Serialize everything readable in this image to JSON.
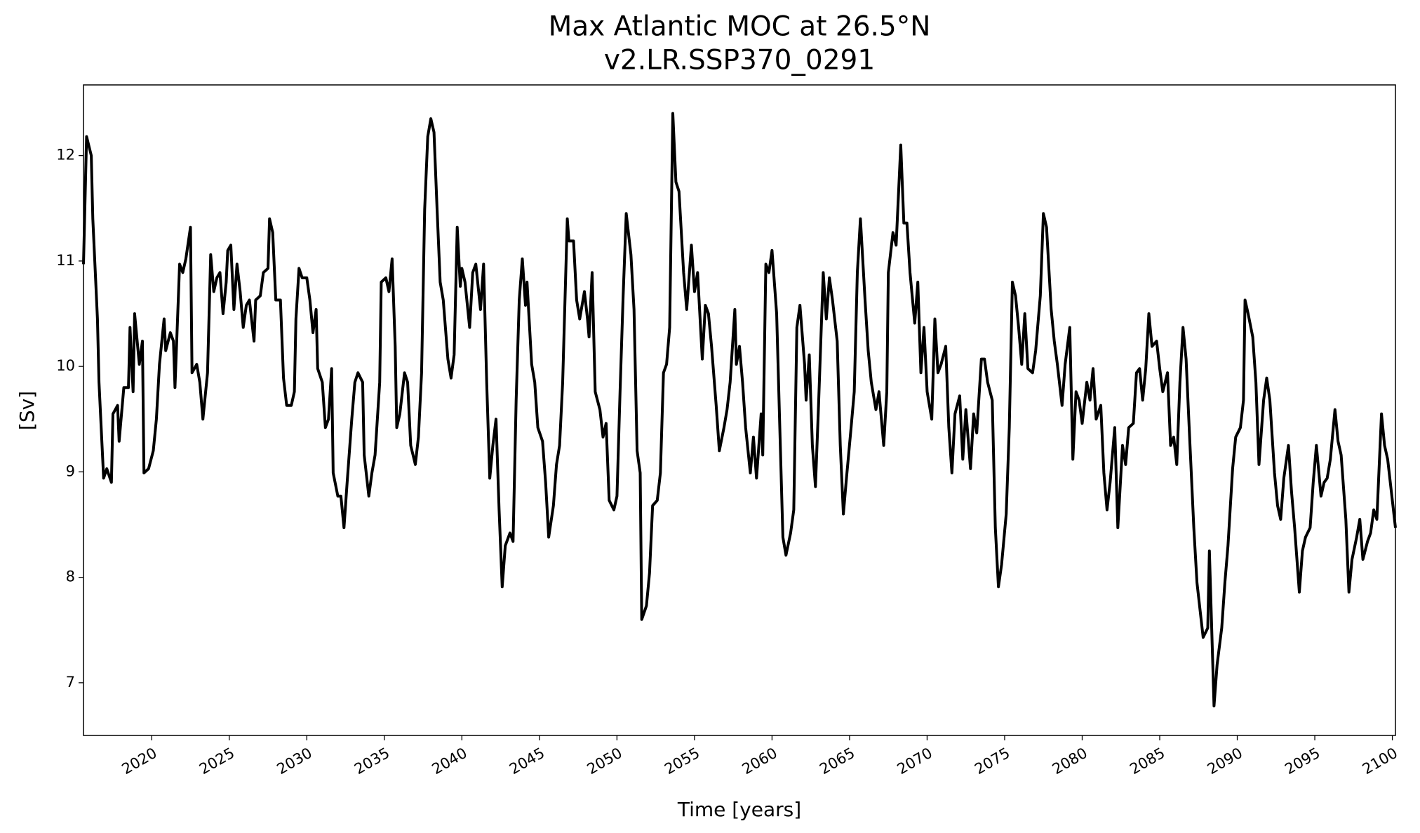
{
  "chart_data": {
    "type": "line",
    "title": "Max Atlantic MOC at 26.5°N",
    "subtitle": "v2.LR.SSP370_0291",
    "x_label": "Time [years]",
    "y_label": "[Sv]",
    "xlim": [
      2015.6,
      2100.2
    ],
    "ylim": [
      6.5,
      12.67
    ],
    "xticks": [
      2020,
      2025,
      2030,
      2035,
      2040,
      2045,
      2050,
      2055,
      2060,
      2065,
      2070,
      2075,
      2080,
      2085,
      2090,
      2095,
      2100
    ],
    "yticks": [
      7,
      8,
      9,
      10,
      11,
      12
    ],
    "series": [
      {
        "name": "MOC",
        "color": "#000000",
        "x": [
          2015.6,
          2015.8,
          2016.1,
          2016.2,
          2016.5,
          2016.6,
          2016.9,
          2017.1,
          2017.4,
          2017.5,
          2017.8,
          2017.9,
          2018.2,
          2018.5,
          2018.6,
          2018.8,
          2018.9,
          2019.2,
          2019.4,
          2019.5,
          2019.8,
          2020.1,
          2020.3,
          2020.5,
          2020.8,
          2020.9,
          2021.2,
          2021.4,
          2021.5,
          2021.8,
          2022.0,
          2022.2,
          2022.5,
          2022.6,
          2022.9,
          2023.1,
          2023.3,
          2023.6,
          2023.8,
          2024.0,
          2024.2,
          2024.4,
          2024.6,
          2024.8,
          2024.9,
          2025.1,
          2025.3,
          2025.5,
          2025.7,
          2025.9,
          2026.1,
          2026.3,
          2026.6,
          2026.7,
          2027.0,
          2027.2,
          2027.5,
          2027.6,
          2027.8,
          2028.0,
          2028.3,
          2028.5,
          2028.7,
          2029.0,
          2029.2,
          2029.3,
          2029.5,
          2029.7,
          2030.0,
          2030.2,
          2030.4,
          2030.6,
          2030.7,
          2031.0,
          2031.2,
          2031.4,
          2031.6,
          2031.7,
          2032.0,
          2032.2,
          2032.4,
          2032.6,
          2032.9,
          2033.1,
          2033.3,
          2033.6,
          2033.7,
          2034.0,
          2034.2,
          2034.4,
          2034.7,
          2034.8,
          2035.1,
          2035.3,
          2035.5,
          2035.7,
          2035.8,
          2036.0,
          2036.3,
          2036.5,
          2036.7,
          2037.0,
          2037.2,
          2037.4,
          2037.6,
          2037.8,
          2038.0,
          2038.2,
          2038.4,
          2038.6,
          2038.8,
          2039.1,
          2039.3,
          2039.5,
          2039.7,
          2039.9,
          2040.0,
          2040.2,
          2040.5,
          2040.7,
          2040.9,
          2041.2,
          2041.4,
          2041.6,
          2041.8,
          2042.0,
          2042.2,
          2042.4,
          2042.6,
          2042.8,
          2043.1,
          2043.3,
          2043.5,
          2043.7,
          2043.9,
          2044.1,
          2044.2,
          2044.5,
          2044.7,
          2044.9,
          2045.2,
          2045.4,
          2045.6,
          2045.9,
          2046.1,
          2046.3,
          2046.5,
          2046.8,
          2046.9,
          2047.2,
          2047.4,
          2047.6,
          2047.9,
          2048.1,
          2048.2,
          2048.4,
          2048.6,
          2048.9,
          2049.1,
          2049.3,
          2049.5,
          2049.8,
          2050.0,
          2050.2,
          2050.4,
          2050.6,
          2050.9,
          2051.1,
          2051.3,
          2051.5,
          2051.6,
          2051.9,
          2052.1,
          2052.3,
          2052.6,
          2052.8,
          2053.0,
          2053.2,
          2053.4,
          2053.6,
          2053.8,
          2054.0,
          2054.3,
          2054.5,
          2054.8,
          2055.0,
          2055.2,
          2055.5,
          2055.7,
          2055.9,
          2056.1,
          2056.4,
          2056.6,
          2056.9,
          2057.1,
          2057.3,
          2057.6,
          2057.7,
          2057.9,
          2058.1,
          2058.3,
          2058.6,
          2058.8,
          2059.0,
          2059.3,
          2059.4,
          2059.6,
          2059.8,
          2060.0,
          2060.3,
          2060.5,
          2060.7,
          2060.9,
          2061.2,
          2061.4,
          2061.6,
          2061.8,
          2062.1,
          2062.2,
          2062.4,
          2062.6,
          2062.8,
          2063.0,
          2063.3,
          2063.5,
          2063.7,
          2063.9,
          2064.2,
          2064.4,
          2064.6,
          2064.8,
          2065.1,
          2065.3,
          2065.5,
          2065.7,
          2066.0,
          2066.2,
          2066.4,
          2066.7,
          2066.9,
          2067.2,
          2067.4,
          2067.5,
          2067.8,
          2068.0,
          2068.3,
          2068.5,
          2068.7,
          2068.9,
          2069.2,
          2069.4,
          2069.6,
          2069.8,
          2070.0,
          2070.3,
          2070.5,
          2070.7,
          2070.9,
          2071.2,
          2071.4,
          2071.6,
          2071.8,
          2072.1,
          2072.3,
          2072.5,
          2072.8,
          2073.0,
          2073.2,
          2073.5,
          2073.7,
          2073.9,
          2074.2,
          2074.4,
          2074.6,
          2074.8,
          2075.1,
          2075.3,
          2075.5,
          2075.7,
          2075.9,
          2076.1,
          2076.3,
          2076.5,
          2076.8,
          2077.0,
          2077.3,
          2077.5,
          2077.7,
          2078.0,
          2078.2,
          2078.4,
          2078.7,
          2078.9,
          2079.2,
          2079.4,
          2079.6,
          2079.8,
          2080.0,
          2080.3,
          2080.5,
          2080.7,
          2080.9,
          2081.2,
          2081.4,
          2081.6,
          2081.8,
          2082.1,
          2082.3,
          2082.6,
          2082.8,
          2083.0,
          2083.3,
          2083.5,
          2083.7,
          2083.9,
          2084.1,
          2084.3,
          2084.5,
          2084.8,
          2085.0,
          2085.2,
          2085.5,
          2085.7,
          2085.9,
          2086.1,
          2086.3,
          2086.5,
          2086.7,
          2086.9,
          2087.2,
          2087.4,
          2087.7,
          2087.8,
          2088.1,
          2088.2,
          2088.5,
          2088.7,
          2089.0,
          2089.2,
          2089.4,
          2089.7,
          2089.9,
          2090.2,
          2090.4,
          2090.5,
          2090.7,
          2091.0,
          2091.2,
          2091.4,
          2091.7,
          2091.9,
          2092.1,
          2092.4,
          2092.6,
          2092.8,
          2093.0,
          2093.3,
          2093.5,
          2093.7,
          2094.0,
          2094.2,
          2094.4,
          2094.7,
          2094.9,
          2095.1,
          2095.4,
          2095.6,
          2095.8,
          2096.0,
          2096.3,
          2096.5,
          2096.7,
          2097.0,
          2097.2,
          2097.4,
          2097.7,
          2097.9,
          2098.1,
          2098.4,
          2098.6,
          2098.8,
          2099.0,
          2099.3,
          2099.5,
          2099.7,
          2100.2
        ],
        "values": [
          10.97,
          12.18,
          12.0,
          11.4,
          10.45,
          9.85,
          8.94,
          9.03,
          8.9,
          9.55,
          9.63,
          9.29,
          9.8,
          9.8,
          10.37,
          9.76,
          10.5,
          10.02,
          10.24,
          8.99,
          9.03,
          9.2,
          9.5,
          10.02,
          10.45,
          10.15,
          10.32,
          10.24,
          9.8,
          10.97,
          10.89,
          11.02,
          11.32,
          9.94,
          10.02,
          9.85,
          9.5,
          9.94,
          11.06,
          10.71,
          10.84,
          10.89,
          10.5,
          10.8,
          11.1,
          11.15,
          10.54,
          10.97,
          10.71,
          10.37,
          10.58,
          10.63,
          10.24,
          10.63,
          10.67,
          10.89,
          10.93,
          11.4,
          11.27,
          10.63,
          10.63,
          9.89,
          9.63,
          9.63,
          9.76,
          10.45,
          10.93,
          10.84,
          10.84,
          10.63,
          10.32,
          10.54,
          9.98,
          9.85,
          9.42,
          9.5,
          9.98,
          8.99,
          8.77,
          8.77,
          8.47,
          8.9,
          9.5,
          9.85,
          9.94,
          9.85,
          9.16,
          8.77,
          8.99,
          9.16,
          9.85,
          10.8,
          10.84,
          10.71,
          11.02,
          10.19,
          9.42,
          9.55,
          9.94,
          9.85,
          9.25,
          9.07,
          9.33,
          9.94,
          11.49,
          12.18,
          12.35,
          12.22,
          11.49,
          10.8,
          10.63,
          10.07,
          9.89,
          10.11,
          11.32,
          10.76,
          10.93,
          10.8,
          10.37,
          10.89,
          10.97,
          10.54,
          10.97,
          9.85,
          8.94,
          9.25,
          9.5,
          8.64,
          7.91,
          8.3,
          8.42,
          8.34,
          9.68,
          10.63,
          11.02,
          10.58,
          10.8,
          10.02,
          9.85,
          9.42,
          9.29,
          8.9,
          8.38,
          8.68,
          9.07,
          9.25,
          9.85,
          11.4,
          11.19,
          11.19,
          10.63,
          10.45,
          10.71,
          10.45,
          10.28,
          10.89,
          9.76,
          9.59,
          9.33,
          9.46,
          8.73,
          8.64,
          8.77,
          9.76,
          10.67,
          11.45,
          11.06,
          10.54,
          9.2,
          8.99,
          7.6,
          7.73,
          8.04,
          8.68,
          8.73,
          8.99,
          9.94,
          10.02,
          10.37,
          12.4,
          11.75,
          11.66,
          10.89,
          10.54,
          11.15,
          10.71,
          10.89,
          10.07,
          10.58,
          10.5,
          10.19,
          9.63,
          9.2,
          9.42,
          9.59,
          9.85,
          10.54,
          10.02,
          10.19,
          9.85,
          9.42,
          8.99,
          9.33,
          8.94,
          9.55,
          9.16,
          10.97,
          10.89,
          11.1,
          10.5,
          9.42,
          8.38,
          8.21,
          8.42,
          8.64,
          10.37,
          10.58,
          10.02,
          9.68,
          10.11,
          9.25,
          8.86,
          9.63,
          10.89,
          10.45,
          10.84,
          10.63,
          10.24,
          9.25,
          8.6,
          8.94,
          9.42,
          9.76,
          10.89,
          11.4,
          10.63,
          10.15,
          9.85,
          9.59,
          9.76,
          9.25,
          9.76,
          10.89,
          11.27,
          11.15,
          12.1,
          11.36,
          11.36,
          10.89,
          10.41,
          10.8,
          9.94,
          10.37,
          9.76,
          9.5,
          10.45,
          9.94,
          10.02,
          10.19,
          9.42,
          8.99,
          9.55,
          9.72,
          9.12,
          9.59,
          9.03,
          9.55,
          9.37,
          10.07,
          10.07,
          9.85,
          9.68,
          8.47,
          7.91,
          8.12,
          8.6,
          9.42,
          10.8,
          10.67,
          10.37,
          10.02,
          10.5,
          9.98,
          9.94,
          10.15,
          10.67,
          11.45,
          11.32,
          10.54,
          10.24,
          10.02,
          9.63,
          10.02,
          10.37,
          9.12,
          9.76,
          9.68,
          9.46,
          9.85,
          9.68,
          9.98,
          9.5,
          9.63,
          8.99,
          8.64,
          8.9,
          9.42,
          8.47,
          9.25,
          9.07,
          9.42,
          9.46,
          9.94,
          9.98,
          9.68,
          9.98,
          10.5,
          10.19,
          10.24,
          9.98,
          9.76,
          9.94,
          9.25,
          9.33,
          9.07,
          9.85,
          10.37,
          10.07,
          9.42,
          8.47,
          7.95,
          7.56,
          7.43,
          7.52,
          8.25,
          6.78,
          7.17,
          7.52,
          7.95,
          8.3,
          9.03,
          9.33,
          9.42,
          9.68,
          10.63,
          10.5,
          10.28,
          9.85,
          9.07,
          9.68,
          9.89,
          9.68,
          8.99,
          8.68,
          8.55,
          8.94,
          9.25,
          8.81,
          8.47,
          7.86,
          8.25,
          8.38,
          8.47,
          8.9,
          9.25,
          8.77,
          8.9,
          8.94,
          9.12,
          9.59,
          9.29,
          9.16,
          8.55,
          7.86,
          8.17,
          8.38,
          8.55,
          8.17,
          8.34,
          8.42,
          8.64,
          8.55,
          9.55,
          9.25,
          9.12,
          8.47
        ]
      }
    ]
  }
}
